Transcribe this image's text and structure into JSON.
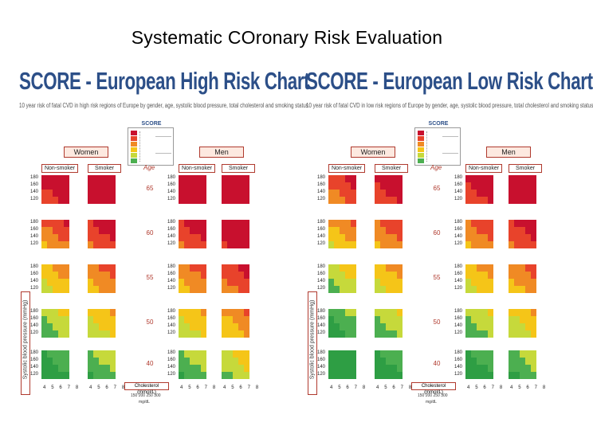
{
  "slide_title": "Systematic COronary Risk Evaluation",
  "charts": [
    {
      "id": "high",
      "heading": "SCORE - European High Risk Chart",
      "subtitle": "10 year risk of fatal CVD in high risk regions of Europe by gender, age, systolic blood pressure, total cholesterol and smoking status",
      "legend_title": "SCORE",
      "women_label": "Women",
      "men_label": "Men",
      "nonsmoker_label": "Non-smoker",
      "smoker_label": "Smoker",
      "age_label": "Age",
      "ages": [
        "65",
        "60",
        "55",
        "50",
        "40"
      ],
      "bp_values": [
        "180",
        "160",
        "140",
        "120"
      ],
      "chol_axis": "4 5 6 7 8",
      "chol_label": "Cholesterol (mmol/L)",
      "chol_ticks": "150 200 250 300",
      "chol_unit": "mg/dL",
      "yaxis_label": "Systolic blood pressure (mmHg)"
    },
    {
      "id": "low",
      "heading": "SCORE - European Low Risk Chart",
      "subtitle": "10 year risk of fatal CVD in low risk regions of Europe by gender, age, systolic blood pressure, total cholesterol and smoking status",
      "legend_title": "SCORE",
      "women_label": "Women",
      "men_label": "Men",
      "nonsmoker_label": "Non-smoker",
      "smoker_label": "Smoker",
      "age_label": "Age",
      "ages": [
        "65",
        "60",
        "55",
        "50",
        "40"
      ],
      "bp_values": [
        "180",
        "160",
        "140",
        "120"
      ],
      "chol_axis": "4 5 6 7 8",
      "chol_label": "Cholesterol (mmol/L)",
      "chol_ticks": "150 200 250 300",
      "chol_unit": "mg/dL",
      "yaxis_label": "Systolic blood pressure (mmHg)"
    }
  ],
  "risk_colors": {
    "very_high": "#c8102e",
    "high": "#e8432b",
    "moderate_high": "#f08a24",
    "moderate": "#f5c518",
    "low_moderate": "#c6d93b",
    "low": "#4caf50",
    "very_low": "#2e9e44"
  }
}
